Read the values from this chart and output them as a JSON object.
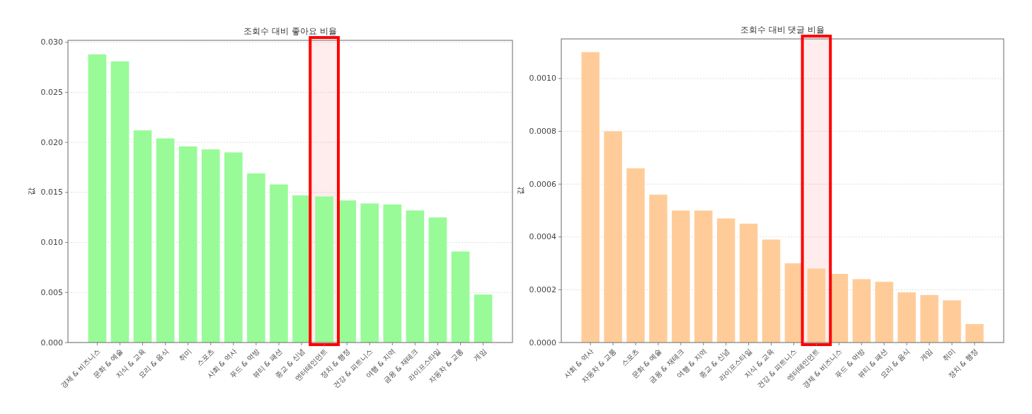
{
  "chart_data": [
    {
      "type": "bar",
      "title": "조회수 대비 좋아요 비율",
      "ylabel": "값",
      "categories": [
        "경제 & 비즈니스",
        "문화 & 예술",
        "지식 & 교육",
        "요리 & 음식",
        "취미",
        "스포츠",
        "사회 & 역사",
        "푸드 & 먹방",
        "뷰티 & 패션",
        "종교 & 신념",
        "엔터테인먼트",
        "정치 & 행정",
        "건강 & 피트니스",
        "여행 & 지역",
        "금융 & 재테크",
        "라이프스타일",
        "자동차 & 교통",
        "게임"
      ],
      "values": [
        0.0288,
        0.0281,
        0.0212,
        0.0204,
        0.0196,
        0.0193,
        0.019,
        0.0169,
        0.0158,
        0.0147,
        0.0146,
        0.0142,
        0.0139,
        0.0138,
        0.0132,
        0.0125,
        0.0091,
        0.0048
      ],
      "color": "#98fb98",
      "ylim": [
        0,
        0.0302
      ],
      "yticks": [
        {
          "value": 0,
          "label": "0.000"
        },
        {
          "value": 0.005,
          "label": "0.005"
        },
        {
          "value": 0.01,
          "label": "0.010"
        },
        {
          "value": 0.015,
          "label": "0.015"
        },
        {
          "value": 0.02,
          "label": "0.020"
        },
        {
          "value": 0.025,
          "label": "0.025"
        },
        {
          "value": 0.03,
          "label": "0.030"
        }
      ],
      "grid": "y",
      "bands": [
        {
          "axis": "x",
          "from": "엔터테인먼트",
          "to": "엔터테인먼트",
          "color": "#ff0000"
        }
      ]
    },
    {
      "type": "bar",
      "title": "조회수 대비 댓글 비율",
      "ylabel": "값",
      "categories": [
        "사회 & 역사",
        "자동차 & 교통",
        "스포츠",
        "문화 & 예술",
        "금융 & 재테크",
        "여행 & 지역",
        "종교 & 신념",
        "라이프스타일",
        "지식 & 교육",
        "건강 & 피트니스",
        "엔터테인먼트",
        "경제 & 비즈니스",
        "푸드 & 먹방",
        "뷰티 & 패션",
        "요리 & 음식",
        "게임",
        "취미",
        "정치 & 행정"
      ],
      "values": [
        0.0011,
        0.0008,
        0.00066,
        0.00056,
        0.0005,
        0.0005,
        0.00047,
        0.00045,
        0.00039,
        0.0003,
        0.00028,
        0.00026,
        0.00024,
        0.00023,
        0.00019,
        0.00018,
        0.00016,
        7e-05
      ],
      "color": "#ffcc99",
      "ylim": [
        0,
        0.00115
      ],
      "yticks": [
        {
          "value": 0,
          "label": "0.0000"
        },
        {
          "value": 0.0002,
          "label": "0.0002"
        },
        {
          "value": 0.0004,
          "label": "0.0004"
        },
        {
          "value": 0.0006,
          "label": "0.0006"
        },
        {
          "value": 0.0008,
          "label": "0.0008"
        },
        {
          "value": 0.001,
          "label": "0.0010"
        }
      ],
      "grid": "y",
      "bands": [
        {
          "axis": "x",
          "from": "엔터테인먼트",
          "to": "엔터테인먼트",
          "color": "#ff0000"
        }
      ]
    }
  ]
}
